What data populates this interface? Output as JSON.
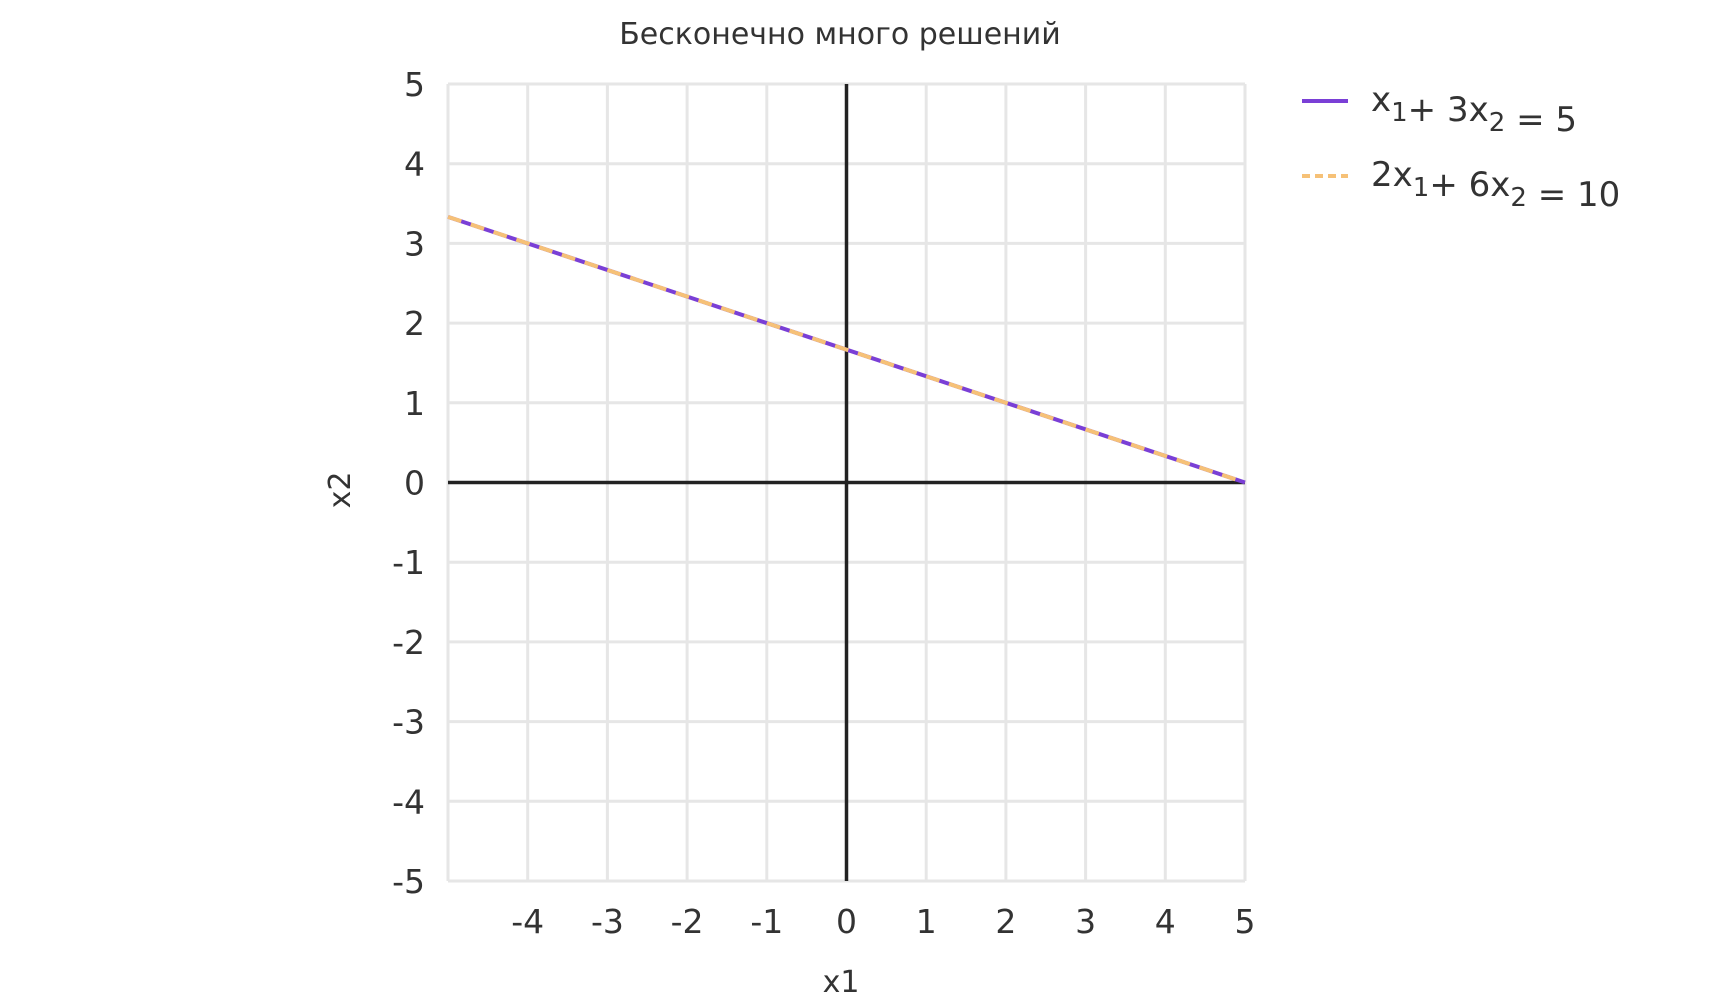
{
  "chart_data": {
    "type": "line",
    "title": "Бесконечно много решений",
    "xlabel": "x1",
    "ylabel": "x2",
    "xlim": [
      -5,
      5
    ],
    "ylim": [
      -5,
      5
    ],
    "x_ticks": [
      -4,
      -3,
      -2,
      -1,
      0,
      1,
      2,
      3,
      4,
      5
    ],
    "x_tick_labels": [
      "-4",
      "-3",
      "-2",
      "-1",
      "0",
      "1",
      "2",
      "3",
      "4",
      "5"
    ],
    "y_ticks": [
      5,
      4,
      3,
      2,
      1,
      0,
      -1,
      -2,
      -3,
      -4,
      -5
    ],
    "y_tick_labels": [
      "5",
      "4",
      "3",
      "2",
      "1",
      "0",
      "-1",
      "-2",
      "-3",
      "-4",
      "-5"
    ],
    "grid": true,
    "legend_position": "top-right-outside",
    "series": [
      {
        "legend": {
          "parts": [
            {
              "text": "x"
            },
            {
              "sub": "1"
            },
            {
              "text": "+ 3x"
            },
            {
              "sub": "2"
            },
            {
              "text": " = 5"
            }
          ]
        },
        "color": "#7a3fd6",
        "style": "solid",
        "points": [
          [
            -5,
            3.3333
          ],
          [
            5,
            0
          ]
        ]
      },
      {
        "legend": {
          "parts": [
            {
              "text": "2x"
            },
            {
              "sub": "1"
            },
            {
              "text": "+ 6x"
            },
            {
              "sub": "2"
            },
            {
              "text": " = 10"
            }
          ]
        },
        "color": "#f6c177",
        "style": "dashed",
        "points": [
          [
            -5,
            3.3333
          ],
          [
            5,
            0
          ]
        ]
      }
    ]
  }
}
